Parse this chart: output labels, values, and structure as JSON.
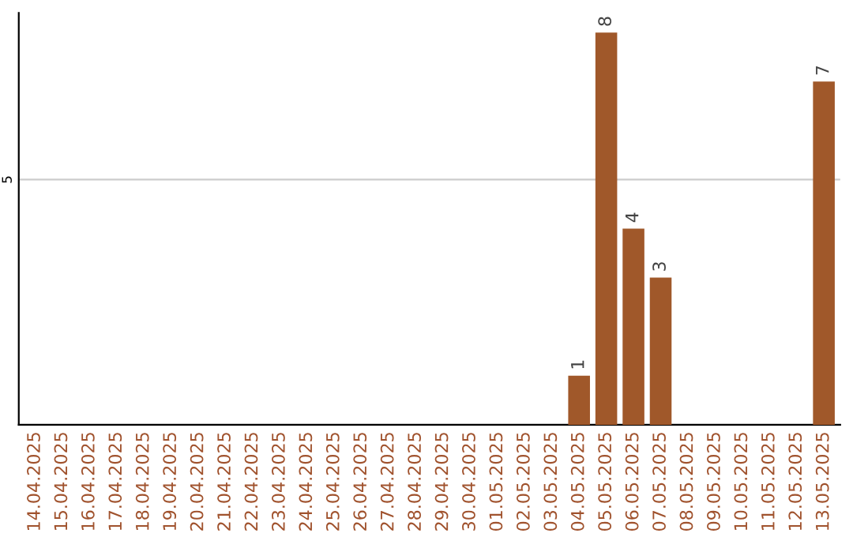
{
  "chart_data": {
    "type": "bar",
    "categories": [
      "14.04.2025",
      "15.04.2025",
      "16.04.2025",
      "17.04.2025",
      "18.04.2025",
      "19.04.2025",
      "20.04.2025",
      "21.04.2025",
      "22.04.2025",
      "23.04.2025",
      "24.04.2025",
      "25.04.2025",
      "26.04.2025",
      "27.04.2025",
      "28.04.2025",
      "29.04.2025",
      "30.04.2025",
      "01.05.2025",
      "02.05.2025",
      "03.05.2025",
      "04.05.2025",
      "05.05.2025",
      "06.05.2025",
      "07.05.2025",
      "08.05.2025",
      "09.05.2025",
      "10.05.2025",
      "11.05.2025",
      "12.05.2025",
      "13.05.2025"
    ],
    "values": [
      null,
      null,
      null,
      null,
      null,
      null,
      null,
      null,
      null,
      null,
      null,
      null,
      null,
      null,
      null,
      null,
      null,
      null,
      null,
      null,
      1,
      8,
      4,
      3,
      null,
      null,
      null,
      null,
      null,
      7
    ],
    "color": "#a0582a",
    "ylim": [
      0,
      8.4
    ],
    "yticks": [
      5
    ],
    "grid": "y",
    "data_labels": true
  }
}
